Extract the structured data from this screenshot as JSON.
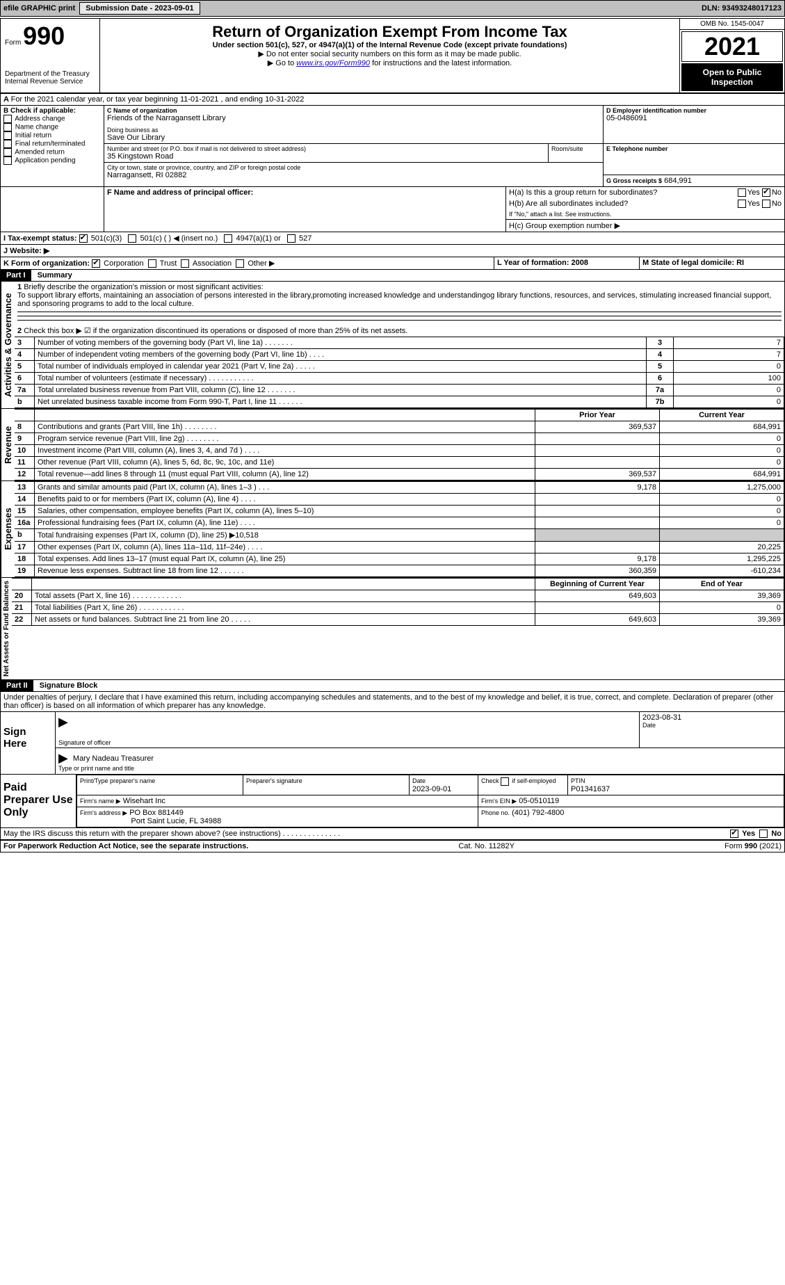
{
  "topbar": {
    "efile": "efile GRAPHIC print",
    "submission_label": "Submission Date - 2023-09-01",
    "dln_label": "DLN: 93493248017123"
  },
  "header": {
    "form_word": "Form",
    "form_num": "990",
    "dept": "Department of the Treasury",
    "irs": "Internal Revenue Service",
    "title": "Return of Organization Exempt From Income Tax",
    "subtitle": "Under section 501(c), 527, or 4947(a)(1) of the Internal Revenue Code (except private foundations)",
    "note1": "▶ Do not enter social security numbers on this form as it may be made public.",
    "note2_pre": "▶ Go to ",
    "note2_link": "www.irs.gov/Form990",
    "note2_post": " for instructions and the latest information.",
    "omb": "OMB No. 1545-0047",
    "year": "2021",
    "open_public": "Open to Public Inspection"
  },
  "period": {
    "line": "For the 2021 calendar year, or tax year beginning 11-01-2021    , and ending 10-31-2022"
  },
  "boxA": {
    "title": "A",
    "note": "Service"
  },
  "boxB": {
    "label": "B Check if applicable:",
    "opts": [
      "Address change",
      "Name change",
      "Initial return",
      "Final return/terminated",
      "Amended return",
      "Application pending"
    ]
  },
  "boxC": {
    "label": "C Name of organization",
    "name": "Friends of the Narragansett Library",
    "dba_label": "Doing business as",
    "dba": "Save Our Library",
    "street_label": "Number and street (or P.O. box if mail is not delivered to street address)",
    "room_label": "Room/suite",
    "street": "35 Kingstown Road",
    "city_label": "City or town, state or province, country, and ZIP or foreign postal code",
    "city": "Narragansett, RI  02882"
  },
  "boxD": {
    "label": "D Employer identification number",
    "value": "05-0486091"
  },
  "boxE": {
    "label": "E Telephone number",
    "value": ""
  },
  "boxG": {
    "label": "G Gross receipts $",
    "value": "684,991"
  },
  "boxF": {
    "label": "F  Name and address of principal officer:"
  },
  "boxH": {
    "a_label": "H(a)  Is this a group return for subordinates?",
    "b_label": "H(b)  Are all subordinates included?",
    "b_note": "If \"No,\" attach a list. See instructions.",
    "c_label": "H(c)  Group exemption number ▶",
    "yes": "Yes",
    "no": "No"
  },
  "boxI": {
    "label": "I  Tax-exempt status:",
    "o1": "501(c)(3)",
    "o2": "501(c) (  ) ◀ (insert no.)",
    "o3": "4947(a)(1) or",
    "o4": "527"
  },
  "boxJ": {
    "label": "J  Website: ▶"
  },
  "boxK": {
    "label": "K Form of organization:",
    "o1": "Corporation",
    "o2": "Trust",
    "o3": "Association",
    "o4": "Other ▶"
  },
  "boxL": {
    "label": "L Year of formation: 2008"
  },
  "boxM": {
    "label": "M State of legal domicile: RI"
  },
  "part1": {
    "header": "Part I",
    "title": "Summary",
    "q1_label": "1",
    "q1_text": "Briefly describe the organization's mission or most significant activities:",
    "q1_body": "To support library efforts, maintaining an association of persons interested in the library,promoting increased knowledge and understandingog library functions, resources, and services, stimulating increased financial support, and sponsoring programs to add to the local culture.",
    "q2_label": "2",
    "q2_text": "Check this box ▶ ☑ if the organization discontinued its operations or disposed of more than 25% of its net assets.",
    "gov_label": "Activities & Governance",
    "rev_label": "Revenue",
    "exp_label": "Expenses",
    "na_label": "Net Assets or Fund Balances",
    "prior_year": "Prior Year",
    "current_year": "Current Year",
    "begin_year": "Beginning of Current Year",
    "end_year": "End of Year",
    "rows_gov": [
      {
        "n": "3",
        "text": "Number of voting members of the governing body (Part VI, line 1a)  .    .    .    .    .    .    .",
        "box": "3",
        "val": "7"
      },
      {
        "n": "4",
        "text": "Number of independent voting members of the governing body (Part VI, line 1b)   .    .    .    .",
        "box": "4",
        "val": "7"
      },
      {
        "n": "5",
        "text": "Total number of individuals employed in calendar year 2021 (Part V, line 2a)   .    .    .    .    .",
        "box": "5",
        "val": "0"
      },
      {
        "n": "6",
        "text": "Total number of volunteers (estimate if necessary)   .    .    .    .    .    .    .    .    .    .    .",
        "box": "6",
        "val": "100"
      },
      {
        "n": "7a",
        "text": "Total unrelated business revenue from Part VIII, column (C), line 12  .    .    .    .    .    .    .",
        "box": "7a",
        "val": "0"
      },
      {
        "n": "b",
        "text": "Net unrelated business taxable income from Form 990-T, Part I, line 11   .    .    .    .    .    .",
        "box": "7b",
        "val": "0"
      }
    ],
    "rows_rev": [
      {
        "n": "8",
        "text": "Contributions and grants (Part VIII, line 1h)   .    .    .    .    .    .    .    .",
        "p": "369,537",
        "c": "684,991"
      },
      {
        "n": "9",
        "text": "Program service revenue (Part VIII, line 2g)   .    .    .    .    .    .    .    .",
        "p": "",
        "c": "0"
      },
      {
        "n": "10",
        "text": "Investment income (Part VIII, column (A), lines 3, 4, and 7d )   .    .    .    .",
        "p": "",
        "c": "0"
      },
      {
        "n": "11",
        "text": "Other revenue (Part VIII, column (A), lines 5, 6d, 8c, 9c, 10c, and 11e)",
        "p": "",
        "c": "0"
      },
      {
        "n": "12",
        "text": "Total revenue—add lines 8 through 11 (must equal Part VIII, column (A), line 12)",
        "p": "369,537",
        "c": "684,991"
      }
    ],
    "rows_exp": [
      {
        "n": "13",
        "text": "Grants and similar amounts paid (Part IX, column (A), lines 1–3 )  .    .    .",
        "p": "9,178",
        "c": "1,275,000"
      },
      {
        "n": "14",
        "text": "Benefits paid to or for members (Part IX, column (A), line 4)   .    .    .    .",
        "p": "",
        "c": "0"
      },
      {
        "n": "15",
        "text": "Salaries, other compensation, employee benefits (Part IX, column (A), lines 5–10)",
        "p": "",
        "c": "0"
      },
      {
        "n": "16a",
        "text": "Professional fundraising fees (Part IX, column (A), line 11e)   .    .    .    .",
        "p": "",
        "c": "0"
      },
      {
        "n": "b",
        "text": "Total fundraising expenses (Part IX, column (D), line 25) ▶10,518",
        "p": "",
        "c": ""
      },
      {
        "n": "17",
        "text": "Other expenses (Part IX, column (A), lines 11a–11d, 11f–24e)   .    .    .    .",
        "p": "",
        "c": "20,225"
      },
      {
        "n": "18",
        "text": "Total expenses. Add lines 13–17 (must equal Part IX, column (A), line 25)",
        "p": "9,178",
        "c": "1,295,225"
      },
      {
        "n": "19",
        "text": "Revenue less expenses. Subtract line 18 from line 12  .    .    .    .    .    .",
        "p": "360,359",
        "c": "-610,234"
      }
    ],
    "rows_na": [
      {
        "n": "20",
        "text": "Total assets (Part X, line 16)   .    .    .    .    .    .    .    .    .    .    .    .",
        "p": "649,603",
        "c": "39,369"
      },
      {
        "n": "21",
        "text": "Total liabilities (Part X, line 26)   .    .    .    .    .    .    .    .    .    .    .",
        "p": "",
        "c": "0"
      },
      {
        "n": "22",
        "text": "Net assets or fund balances. Subtract line 21 from line 20   .    .    .    .    .",
        "p": "649,603",
        "c": "39,369"
      }
    ]
  },
  "part2": {
    "header": "Part II",
    "title": "Signature Block",
    "decl": "Under penalties of perjury, I declare that I have examined this return, including accompanying schedules and statements, and to the best of my knowledge and belief, it is true, correct, and complete. Declaration of preparer (other than officer) is based on all information of which preparer has any knowledge."
  },
  "sign": {
    "label": "Sign Here",
    "sig_officer": "Signature of officer",
    "date_label": "Date",
    "date": "2023-08-31",
    "name": "Mary Nadeau  Treasurer",
    "name_label": "Type or print name and title"
  },
  "paid": {
    "label": "Paid Preparer Use Only",
    "c1": "Print/Type preparer's name",
    "c2": "Preparer's signature",
    "c3_label": "Date",
    "c3": "2023-09-01",
    "c4_label": "Check         if self-employed",
    "c5_label": "PTIN",
    "c5": "P01341637",
    "firm_name_label": "Firm's name     ▶",
    "firm_name": "Wisehart Inc",
    "firm_ein_label": "Firm's EIN ▶",
    "firm_ein": "05-0510119",
    "firm_addr_label": "Firm's address ▶",
    "firm_addr1": "PO Box 881449",
    "firm_addr2": "Port Saint Lucie, FL  34988",
    "phone_label": "Phone no.",
    "phone": "(401) 792-4800"
  },
  "discuss": {
    "text": "May the IRS discuss this return with the preparer shown above? (see instructions)   .    .    .    .    .    .    .    .    .    .    .    .    .    .",
    "yes": "Yes",
    "no": "No"
  },
  "footer": {
    "left": "For Paperwork Reduction Act Notice, see the separate instructions.",
    "mid": "Cat. No. 11282Y",
    "right": "Form 990 (2021)"
  }
}
